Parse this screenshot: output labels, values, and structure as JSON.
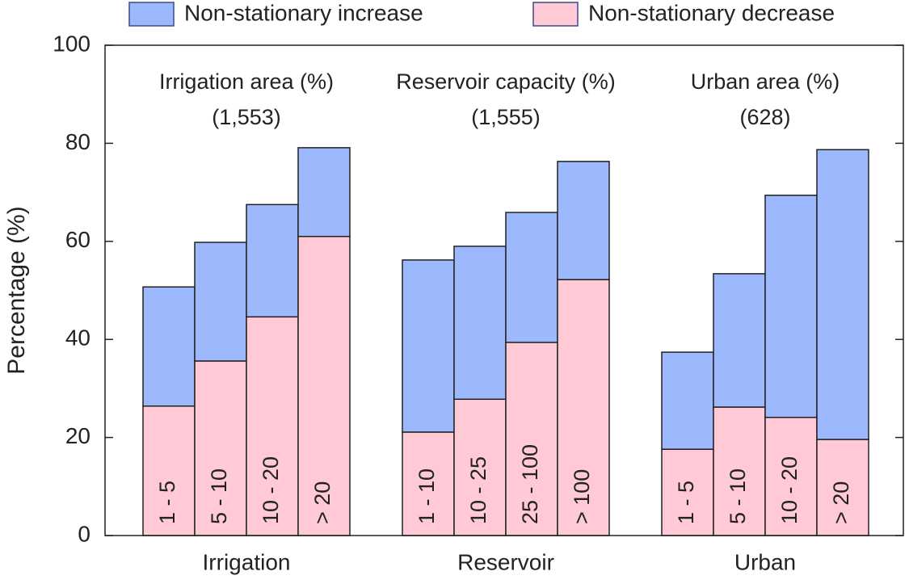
{
  "chart_data": {
    "type": "grouped-stacked-bar",
    "ylabel": "Percentage (%)",
    "ylim": [
      0,
      100
    ],
    "yticks": [
      0,
      20,
      40,
      60,
      80,
      100
    ],
    "groups": [
      {
        "name": "Irrigation",
        "title": "Irrigation area (%)",
        "count": "(1,553)",
        "categories": [
          "1 - 5",
          "5 - 10",
          "10 - 20",
          "> 20"
        ]
      },
      {
        "name": "Reservoir",
        "title": "Reservoir capacity (%)",
        "count": "(1,555)",
        "categories": [
          "1 - 10",
          "10 - 25",
          "25 - 100",
          "> 100"
        ]
      },
      {
        "name": "Urban",
        "title": "Urban area (%)",
        "count": "(628)",
        "categories": [
          "1 - 5",
          "5 - 10",
          "10 - 20",
          "> 20"
        ]
      }
    ],
    "series": [
      {
        "name": "Non-stationary decrease",
        "color": "#ffc9d6",
        "values": [
          26.4,
          35.6,
          44.6,
          61.0,
          21.1,
          27.8,
          39.4,
          52.2,
          17.6,
          26.2,
          24.1,
          19.6
        ]
      },
      {
        "name": "Non-stationary increase",
        "color": "#9db9fd",
        "values": [
          24.3,
          24.2,
          22.9,
          18.1,
          35.1,
          31.2,
          26.5,
          24.1,
          19.8,
          27.2,
          45.3,
          59.1
        ]
      }
    ]
  }
}
